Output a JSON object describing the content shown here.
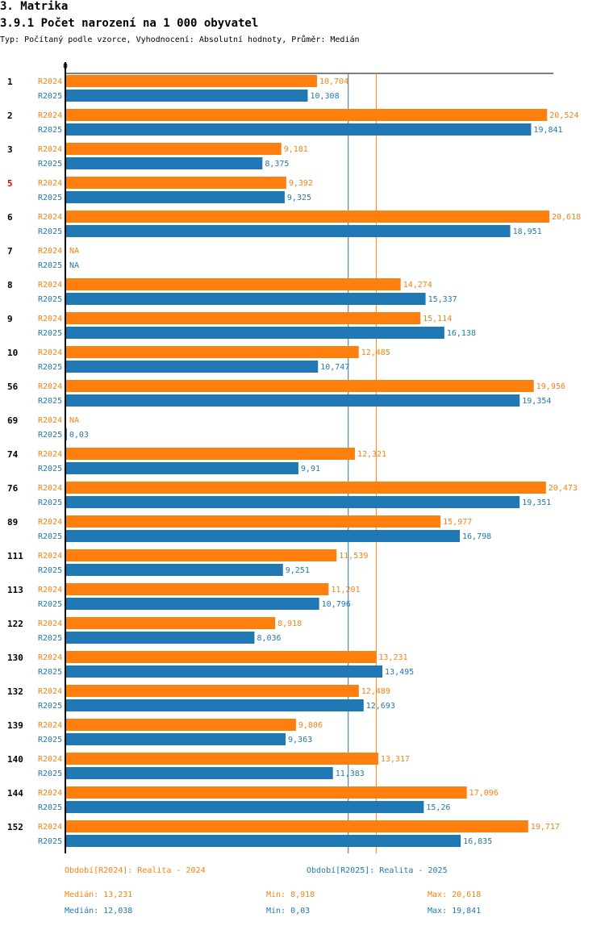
{
  "header": {
    "section": "3. Matrika",
    "title": "3.9.1 Počet narození na 1 000 obyvatel",
    "subtitle": "Typ: Počítaný podle vzorce, Vyhodnocení: Absolutní hodnoty, Průměr: Medián"
  },
  "colors": {
    "r2024": "#ff7f0e",
    "r2025": "#1f77b4",
    "highlight_group": "#e00000",
    "axis": "#000000"
  },
  "chart_data": {
    "type": "bar",
    "orientation": "horizontal",
    "title": "3.9.1 Počet narození na 1 000 obyvatel",
    "axis_zero_label": "0",
    "xlim": [
      0,
      20.618
    ],
    "categories": [
      "1",
      "2",
      "3",
      "5",
      "6",
      "7",
      "8",
      "9",
      "10",
      "56",
      "69",
      "74",
      "76",
      "89",
      "111",
      "113",
      "122",
      "130",
      "132",
      "139",
      "140",
      "144",
      "152"
    ],
    "highlighted_category": "5",
    "series": [
      {
        "name": "R2024",
        "legend": "Období[R2024]: Realita - 2024",
        "values": [
          10.704,
          20.524,
          9.181,
          9.392,
          20.618,
          null,
          14.274,
          15.114,
          12.485,
          19.956,
          null,
          12.321,
          20.473,
          15.977,
          11.539,
          11.201,
          8.918,
          13.231,
          12.489,
          9.806,
          13.317,
          17.096,
          19.717
        ],
        "labels": [
          "10,704",
          "20,524",
          "9,181",
          "9,392",
          "20,618",
          "NA",
          "14,274",
          "15,114",
          "12,485",
          "19,956",
          "NA",
          "12,321",
          "20,473",
          "15,977",
          "11,539",
          "11,201",
          "8,918",
          "13,231",
          "12,489",
          "9,806",
          "13,317",
          "17,096",
          "19,717"
        ],
        "median": 13.231,
        "median_label": "Medián: 13,231",
        "min_label": "Min: 8,918",
        "max_label": "Max: 20,618"
      },
      {
        "name": "R2025",
        "legend": "Období[R2025]: Realita - 2025",
        "values": [
          10.308,
          19.841,
          8.375,
          9.325,
          18.951,
          null,
          15.337,
          16.138,
          10.747,
          19.354,
          0.03,
          9.91,
          19.351,
          16.798,
          9.251,
          10.796,
          8.036,
          13.495,
          12.693,
          9.363,
          11.383,
          15.26,
          16.835
        ],
        "labels": [
          "10,308",
          "19,841",
          "8,375",
          "9,325",
          "18,951",
          "NA",
          "15,337",
          "16,138",
          "10,747",
          "19,354",
          "0,03",
          "9,91",
          "19,351",
          "16,798",
          "9,251",
          "10,796",
          "8,036",
          "13,495",
          "12,693",
          "9,363",
          "11,383",
          "15,26",
          "16,835"
        ],
        "median": 12.038,
        "median_label": "Medián: 12,038",
        "min_label": "Min: 0,03",
        "max_label": "Max: 19,841"
      }
    ]
  }
}
